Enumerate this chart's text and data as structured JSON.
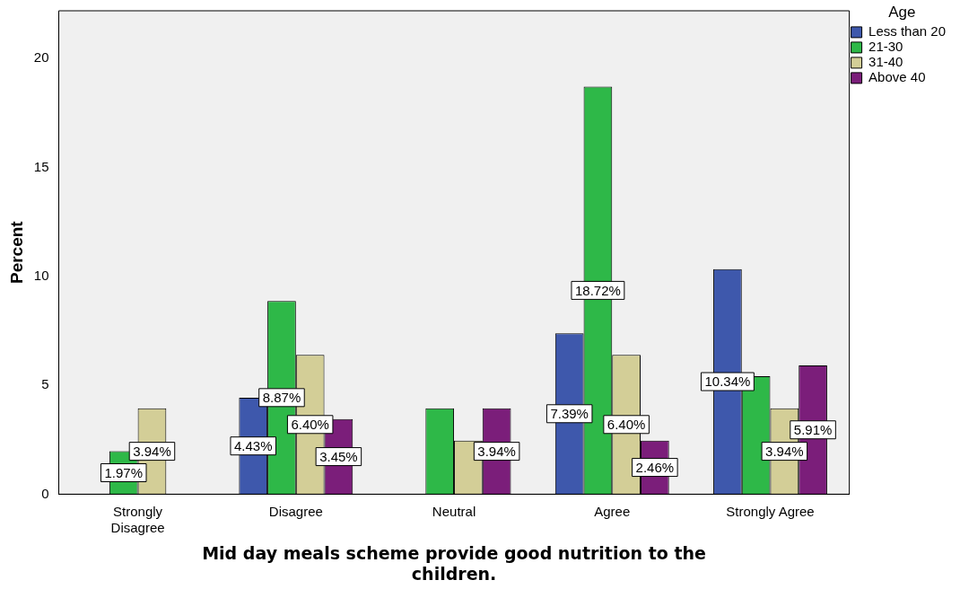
{
  "chart_data": {
    "type": "bar",
    "xlabel": "Mid day meals scheme provide good nutrition to the children.",
    "ylabel": "Percent",
    "legend_title": "Age",
    "categories": [
      "Strongly Disagree",
      "Disagree",
      "Neutral",
      "Agree",
      "Strongly Agree"
    ],
    "series": [
      {
        "name": "Less than 20",
        "color": "#3e58ac",
        "values": [
          null,
          4.43,
          null,
          7.39,
          10.34
        ],
        "value_labels": [
          null,
          "4.43%",
          null,
          "7.39%",
          "10.34%"
        ]
      },
      {
        "name": "21-30",
        "color": "#2eb848",
        "values": [
          1.97,
          8.87,
          3.94,
          18.72,
          5.42
        ],
        "value_labels": [
          "1.97%",
          "8.87%",
          null,
          "18.72%",
          null
        ]
      },
      {
        "name": "31-40",
        "color": "#d3ce97",
        "values": [
          3.94,
          6.4,
          2.46,
          6.4,
          3.94
        ],
        "value_labels": [
          "3.94%",
          "6.40%",
          null,
          "6.40%",
          "3.94%"
        ]
      },
      {
        "name": "Above 40",
        "color": "#7b1e7a",
        "values": [
          null,
          3.45,
          3.94,
          2.46,
          5.91
        ],
        "value_labels": [
          null,
          "3.45%",
          "3.94%",
          "2.46%",
          "5.91%"
        ]
      }
    ],
    "ylim": [
      0,
      22.2
    ],
    "yticks": [
      0,
      5,
      10,
      15,
      20
    ],
    "grid": false,
    "legend": "top right"
  }
}
